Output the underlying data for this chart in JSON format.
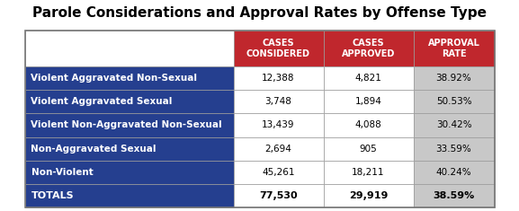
{
  "title": "Parole Considerations and Approval Rates by Offense Type",
  "col_headers": [
    "CASES\nCONSIDERED",
    "CASES\nAPPROVED",
    "APPROVAL\nRATE"
  ],
  "row_labels": [
    "Violent Aggravated Non-Sexual",
    "Violent Aggravated Sexual",
    "Violent Non-Aggravated Non-Sexual",
    "Non-Aggravated Sexual",
    "Non-Violent",
    "TOTALS"
  ],
  "table_data": [
    [
      "12,388",
      "4,821",
      "38.92%"
    ],
    [
      "3,748",
      "1,894",
      "50.53%"
    ],
    [
      "13,439",
      "4,088",
      "30.42%"
    ],
    [
      "2,694",
      "905",
      "33.59%"
    ],
    [
      "45,261",
      "18,211",
      "40.24%"
    ],
    [
      "77,530",
      "29,919",
      "38.59%"
    ]
  ],
  "header_bg": "#C0272D",
  "header_text": "#FFFFFF",
  "row_label_bg": "#253F8F",
  "row_label_text": "#FFFFFF",
  "data_bg": "#FFFFFF",
  "approval_rate_bg": "#C8C8C8",
  "grid_color": "#999999",
  "title_fontsize": 11,
  "header_fontsize": 7,
  "data_fontsize": 7.5,
  "label_fontsize": 7.5,
  "totals_fontsize": 8
}
